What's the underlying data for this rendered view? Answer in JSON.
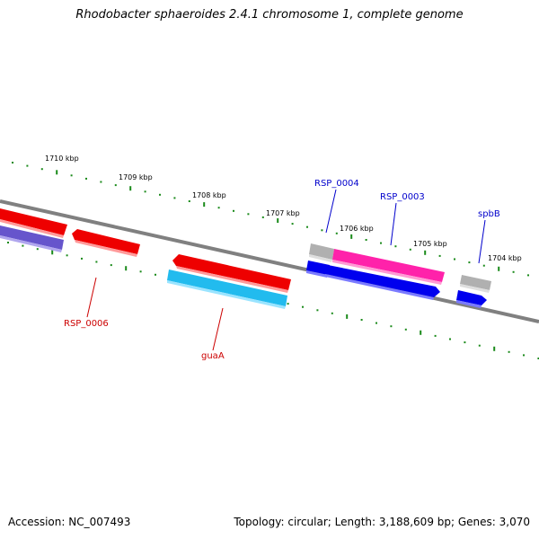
{
  "title": "Rhodobacter sphaeroides 2.4.1 chromosome 1, complete genome",
  "accession": "Accession: NC_007493",
  "summary": "Topology: circular; Length: 3,188,609 bp; Genes: 3,070",
  "kbp_labels": [
    "1710 kbp",
    "1709 kbp",
    "1708 kbp",
    "1707 kbp",
    "1706 kbp",
    "1705 kbp",
    "1704 kbp"
  ],
  "gene_labels": [
    "RSP_0004",
    "RSP_0003",
    "spbB",
    "RSP_0006",
    "guaA"
  ],
  "colors": {
    "backbone": "#808080",
    "tick": "#1a8a1a",
    "red_gene": "#ee0000",
    "pink_gene": "#ff22aa",
    "blue_gene": "#0000ee",
    "cyan_gene": "#22bbee",
    "gray_gene": "#b0b0b0",
    "purple_gene": "#6655cc",
    "label_blue": "#0000cc",
    "label_red": "#cc0000"
  }
}
